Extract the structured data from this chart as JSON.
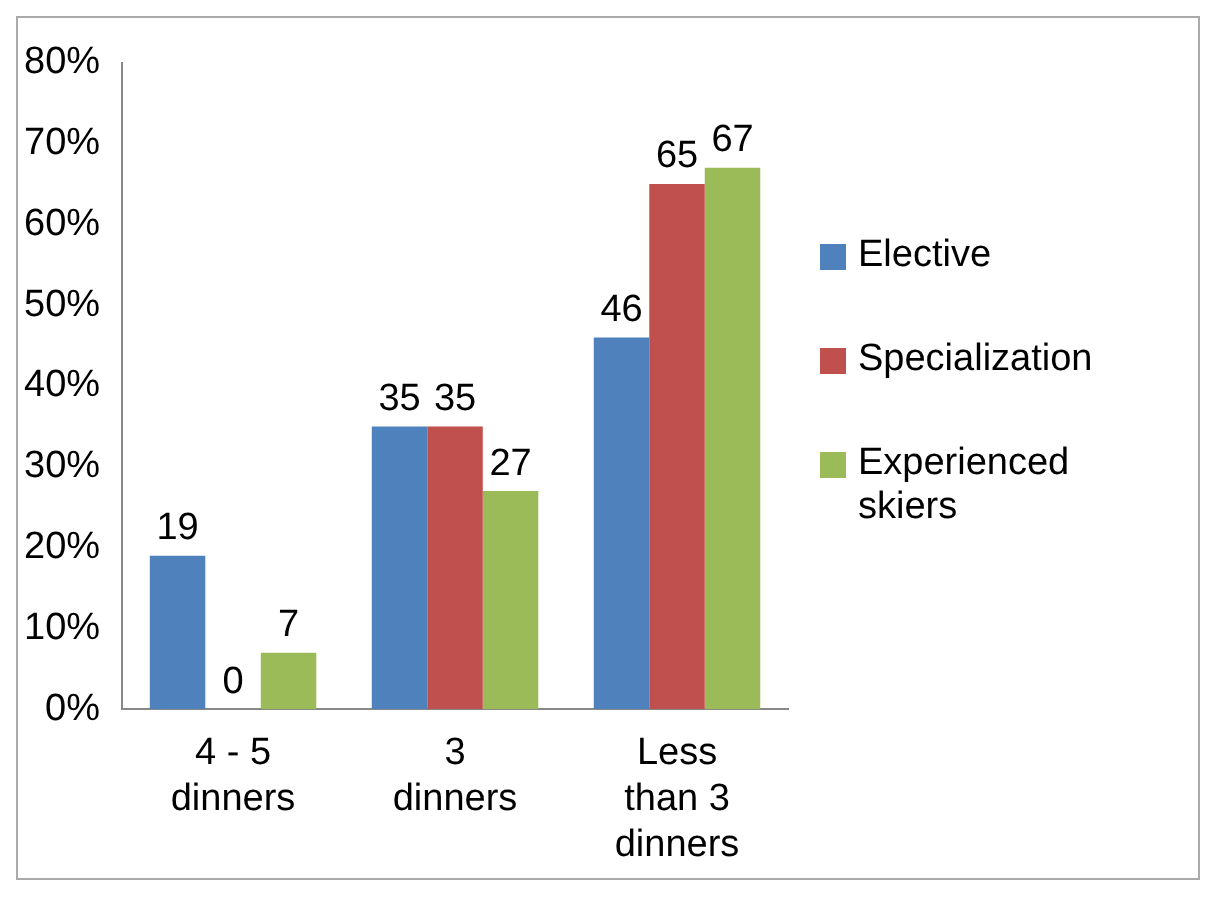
{
  "chart_data": {
    "type": "bar",
    "categories": [
      "4 - 5 dinners",
      "3 dinners",
      "Less than 3 dinners"
    ],
    "series": [
      {
        "name": "Elective",
        "color": "#4f81bd",
        "values": [
          19,
          35,
          46
        ]
      },
      {
        "name": "Specialization",
        "color": "#c0504d",
        "values": [
          0,
          35,
          65
        ]
      },
      {
        "name": "Experienced skiers",
        "color": "#9bbb59",
        "values": [
          7,
          27,
          67
        ]
      }
    ],
    "ylim": [
      0,
      80
    ],
    "yticks": [
      {
        "value": 0,
        "label": "0%"
      },
      {
        "value": 10,
        "label": "10%"
      },
      {
        "value": 20,
        "label": "20%"
      },
      {
        "value": 30,
        "label": "30%"
      },
      {
        "value": 40,
        "label": "40%"
      },
      {
        "value": 50,
        "label": "50%"
      },
      {
        "value": 60,
        "label": "60%"
      },
      {
        "value": 70,
        "label": "70%"
      },
      {
        "value": 80,
        "label": "80%"
      }
    ],
    "grid": false,
    "legend": "right",
    "data_labels": true
  }
}
